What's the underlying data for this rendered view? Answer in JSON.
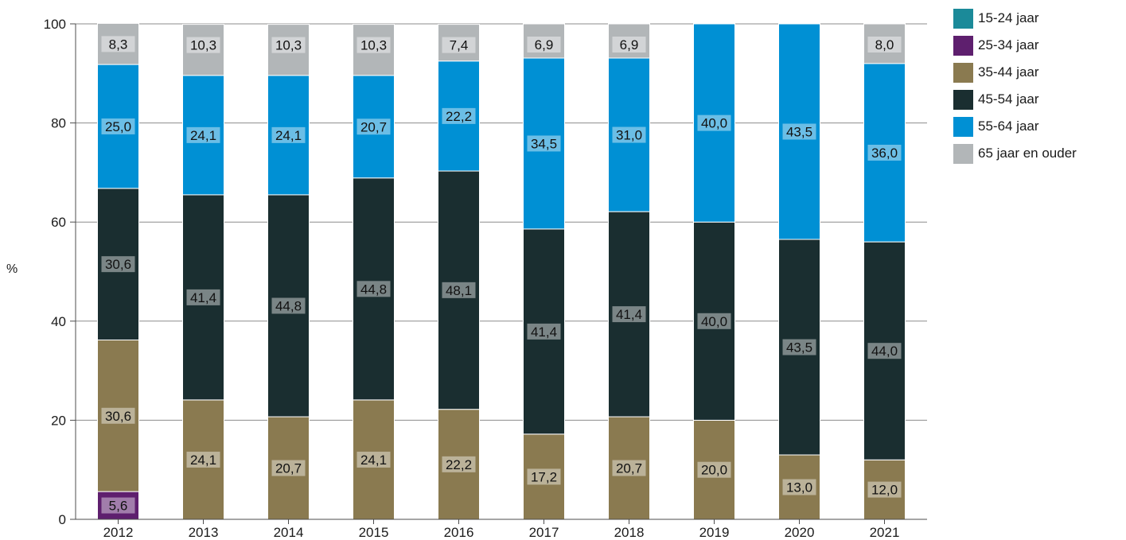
{
  "chart_data": {
    "type": "bar",
    "stacked": true,
    "title": "",
    "xlabel": "",
    "ylabel": "%",
    "ylim": [
      0,
      100
    ],
    "yticks": [
      0,
      20,
      40,
      60,
      80,
      100
    ],
    "categories": [
      "2012",
      "2013",
      "2014",
      "2015",
      "2016",
      "2017",
      "2018",
      "2019",
      "2020",
      "2021"
    ],
    "series": [
      {
        "name": "15-24 jaar",
        "color": "#1b8a99",
        "values": [
          0,
          0,
          0,
          0,
          0,
          0,
          0,
          0,
          0,
          0
        ]
      },
      {
        "name": "25-34 jaar",
        "color": "#5e1f6e",
        "values": [
          5.6,
          0,
          0,
          0,
          0,
          0,
          0,
          0,
          0,
          0
        ]
      },
      {
        "name": "35-44 jaar",
        "color": "#8a7a50",
        "values": [
          30.6,
          24.1,
          20.7,
          24.1,
          22.2,
          17.2,
          20.7,
          20.0,
          13.0,
          12.0
        ]
      },
      {
        "name": "45-54 jaar",
        "color": "#1a2e30",
        "values": [
          30.6,
          41.4,
          44.8,
          44.8,
          48.1,
          41.4,
          41.4,
          40.0,
          43.5,
          44.0
        ]
      },
      {
        "name": "55-64 jaar",
        "color": "#0090d4",
        "values": [
          25.0,
          24.1,
          24.1,
          20.7,
          22.2,
          34.5,
          31.0,
          40.0,
          43.5,
          36.0
        ]
      },
      {
        "name": "65 jaar en ouder",
        "color": "#b2b6b8",
        "values": [
          8.3,
          10.3,
          10.3,
          10.3,
          7.4,
          6.9,
          6.9,
          0,
          0,
          8.0
        ]
      }
    ],
    "data_labels": [
      [
        "",
        "5,6",
        "30,6",
        "30,6",
        "25,0",
        "8,3"
      ],
      [
        "",
        "",
        "24,1",
        "41,4",
        "24,1",
        "10,3"
      ],
      [
        "",
        "",
        "20,7",
        "44,8",
        "24,1",
        "10,3"
      ],
      [
        "",
        "",
        "24,1",
        "44,8",
        "20,7",
        "10,3"
      ],
      [
        "",
        "",
        "22,2",
        "48,1",
        "22,2",
        "7,4"
      ],
      [
        "",
        "",
        "17,2",
        "41,4",
        "34,5",
        "6,9"
      ],
      [
        "",
        "",
        "20,7",
        "41,4",
        "31,0",
        "6,9"
      ],
      [
        "",
        "",
        "20,0",
        "40,0",
        "40,0",
        ""
      ],
      [
        "",
        "",
        "13,0",
        "43,5",
        "43,5",
        ""
      ],
      [
        "",
        "",
        "12,0",
        "44,0",
        "36,0",
        "8,0"
      ]
    ],
    "grid": true,
    "legend": "right"
  }
}
